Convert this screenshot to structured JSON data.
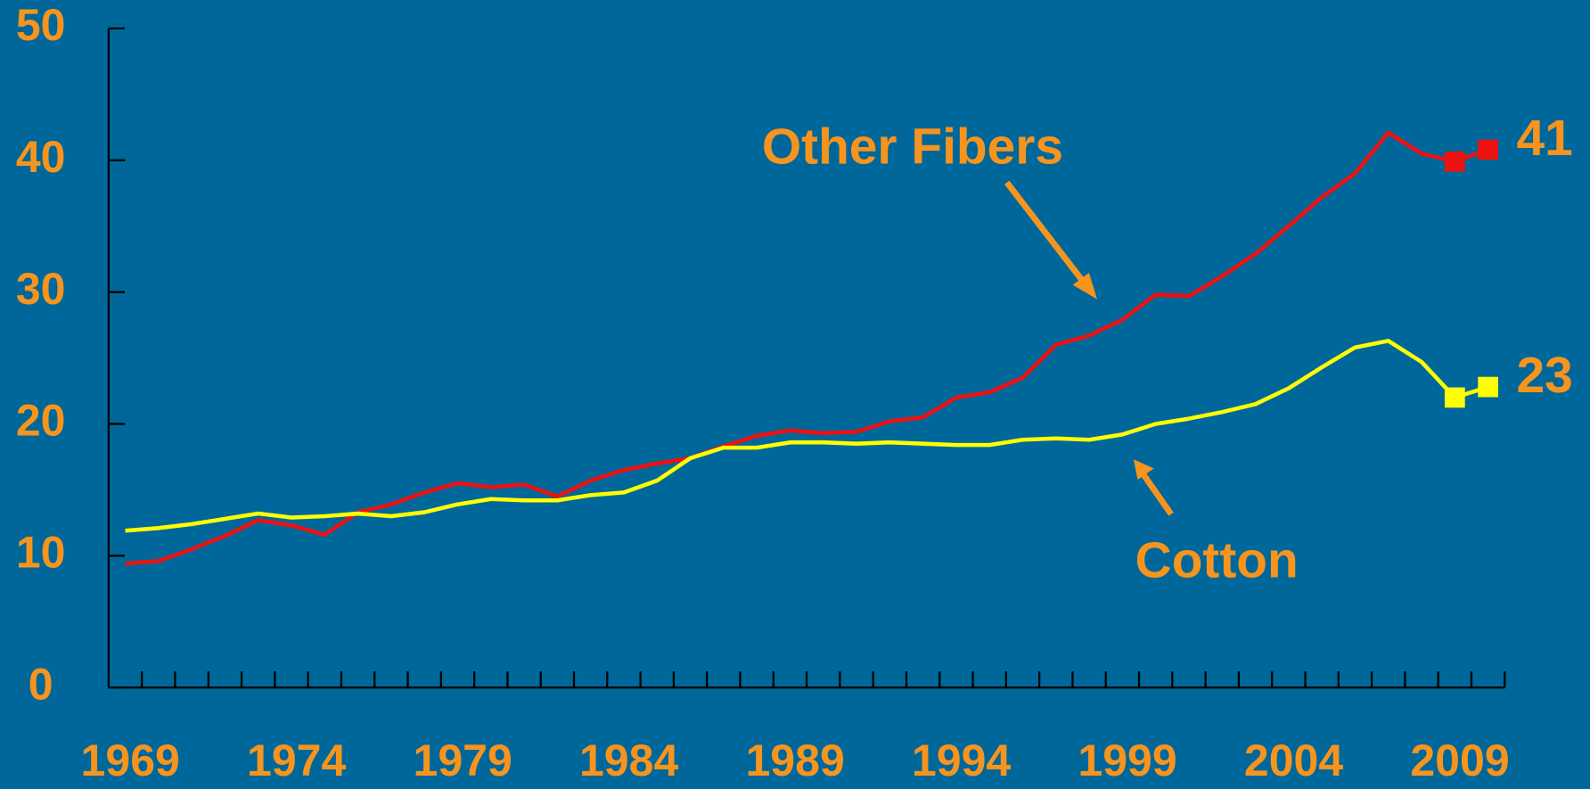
{
  "chart_data": {
    "type": "line",
    "x": [
      1969,
      1970,
      1971,
      1972,
      1973,
      1974,
      1975,
      1976,
      1977,
      1978,
      1979,
      1980,
      1981,
      1982,
      1983,
      1984,
      1985,
      1986,
      1987,
      1988,
      1989,
      1990,
      1991,
      1992,
      1993,
      1994,
      1995,
      1996,
      1997,
      1998,
      1999,
      2000,
      2001,
      2002,
      2003,
      2004,
      2005,
      2006,
      2007,
      2008,
      2009,
      2010
    ],
    "series": [
      {
        "name": "Other Fibers",
        "color": "#ee1111",
        "marker_x": [
          2009,
          2010
        ],
        "values": [
          9.4,
          9.6,
          10.5,
          11.5,
          12.7,
          12.3,
          11.6,
          13.3,
          13.9,
          14.8,
          15.5,
          15.2,
          15.4,
          14.5,
          15.7,
          16.5,
          17.0,
          17.4,
          18.3,
          19.1,
          19.5,
          19.3,
          19.4,
          20.2,
          20.5,
          22.0,
          22.4,
          23.5,
          26.0,
          26.7,
          27.9,
          29.8,
          29.7,
          31.2,
          32.9,
          35.0,
          37.2,
          39.0,
          42.1,
          40.5,
          39.9,
          40.8
        ],
        "value_labels": [
          null,
          null,
          null,
          null,
          null,
          null,
          null,
          null,
          null,
          null,
          null,
          null,
          null,
          null,
          null,
          null,
          null,
          null,
          null,
          null,
          null,
          null,
          null,
          null,
          null,
          null,
          null,
          null,
          null,
          null,
          null,
          null,
          null,
          null,
          null,
          null,
          null,
          null,
          null,
          null,
          null,
          "41"
        ]
      },
      {
        "name": "Cotton",
        "color": "#ffff00",
        "marker_x": [
          2009,
          2010
        ],
        "values": [
          11.9,
          12.1,
          12.4,
          12.8,
          13.2,
          12.9,
          13.0,
          13.2,
          13.0,
          13.3,
          13.9,
          14.3,
          14.2,
          14.2,
          14.6,
          14.8,
          15.7,
          17.4,
          18.2,
          18.2,
          18.6,
          18.6,
          18.5,
          18.6,
          18.5,
          18.4,
          18.4,
          18.8,
          18.9,
          18.8,
          19.2,
          20.0,
          20.4,
          20.9,
          21.5,
          22.7,
          24.3,
          25.8,
          26.3,
          24.7,
          22.0,
          22.8
        ],
        "value_labels": [
          null,
          null,
          null,
          null,
          null,
          null,
          null,
          null,
          null,
          null,
          null,
          null,
          null,
          null,
          null,
          null,
          null,
          null,
          null,
          null,
          null,
          null,
          null,
          null,
          null,
          null,
          null,
          null,
          null,
          null,
          null,
          null,
          null,
          null,
          null,
          null,
          null,
          null,
          null,
          null,
          null,
          "23"
        ]
      }
    ],
    "xlim": [
      1968.5,
      2010.5
    ],
    "xticks": [
      1969,
      1974,
      1979,
      1984,
      1989,
      1994,
      1999,
      2004,
      2009
    ],
    "ylim": [
      0,
      50
    ],
    "yticks": [
      0,
      10,
      20,
      30,
      40,
      50
    ],
    "annotations": [
      {
        "text": "Other Fibers"
      },
      {
        "text": "Cotton"
      }
    ]
  }
}
